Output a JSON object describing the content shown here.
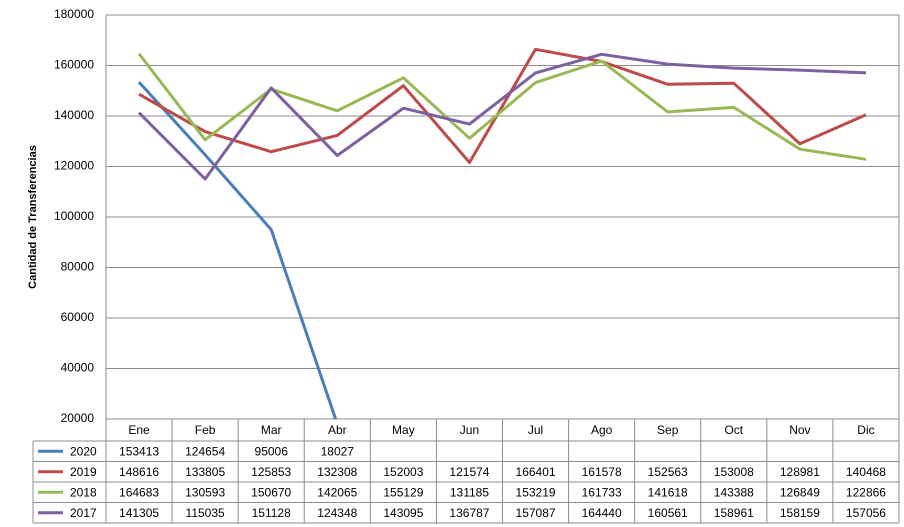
{
  "chart_data": {
    "type": "line",
    "y_label": "Cantidad de Transferencias",
    "categories": [
      "Ene",
      "Feb",
      "Mar",
      "Abr",
      "May",
      "Jun",
      "Jul",
      "Ago",
      "Sep",
      "Oct",
      "Nov",
      "Dic"
    ],
    "series": [
      {
        "name": "2020",
        "color": "#4a7ebb",
        "values": [
          153413,
          124654,
          95006,
          18027,
          null,
          null,
          null,
          null,
          null,
          null,
          null,
          null
        ]
      },
      {
        "name": "2019",
        "color": "#be4b48",
        "values": [
          148616,
          133805,
          125853,
          132308,
          152003,
          121574,
          166401,
          161578,
          152563,
          153008,
          128981,
          140468
        ]
      },
      {
        "name": "2018",
        "color": "#98b954",
        "values": [
          164683,
          130593,
          150670,
          142065,
          155129,
          131185,
          153219,
          161733,
          141618,
          143388,
          126849,
          122866
        ]
      },
      {
        "name": "2017",
        "color": "#7d60a0",
        "values": [
          141305,
          115035,
          151128,
          124348,
          143095,
          136787,
          157087,
          164440,
          160561,
          158961,
          158159,
          157056
        ]
      }
    ],
    "ylim": [
      20000,
      180000
    ],
    "yticks": [
      20000,
      40000,
      60000,
      80000,
      100000,
      120000,
      140000,
      160000,
      180000
    ],
    "grid": true
  }
}
